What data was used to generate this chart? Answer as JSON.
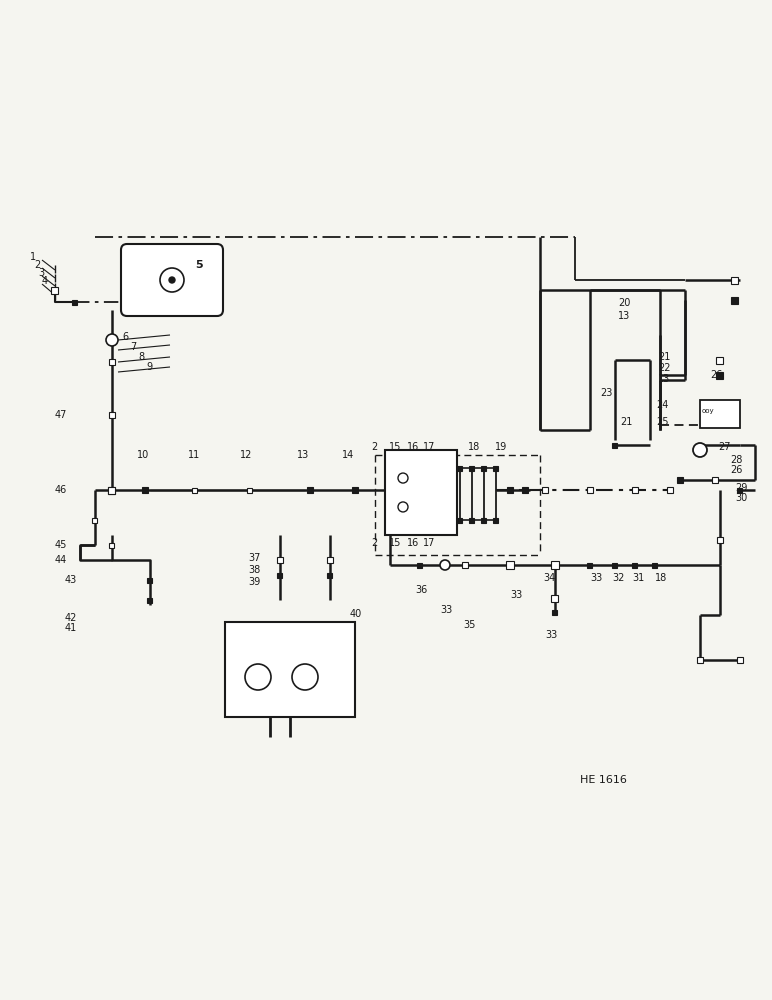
{
  "background": "#f5f5f0",
  "line_color": "#1a1a1a",
  "fig_width": 7.72,
  "fig_height": 10.0,
  "dpi": 100,
  "ref_code": "HE 1616"
}
